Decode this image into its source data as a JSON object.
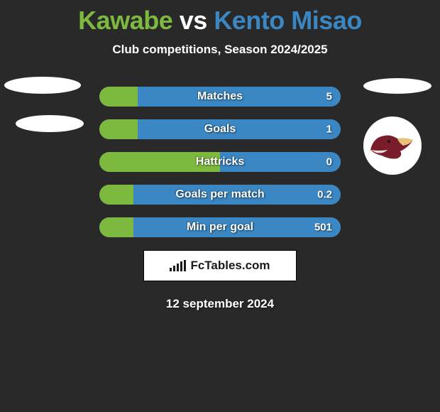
{
  "title": {
    "player_left": "Kawabe",
    "vs": "vs",
    "player_right": "Kento Misao",
    "color_left": "#7db93f",
    "color_right": "#3a87c3"
  },
  "subtitle": "Club competitions, Season 2024/2025",
  "colors": {
    "bg": "#292929",
    "bar_left": "#7db93f",
    "bar_right": "#3a87c3",
    "text": "#ffffff"
  },
  "stats": [
    {
      "label": "Matches",
      "left_val": "",
      "right_val": "5",
      "left_pct": 16,
      "right_pct": 84
    },
    {
      "label": "Goals",
      "left_val": "",
      "right_val": "1",
      "left_pct": 16,
      "right_pct": 84
    },
    {
      "label": "Hattricks",
      "left_val": "",
      "right_val": "0",
      "left_pct": 50,
      "right_pct": 50
    },
    {
      "label": "Goals per match",
      "left_val": "",
      "right_val": "0.2",
      "left_pct": 14,
      "right_pct": 86
    },
    {
      "label": "Min per goal",
      "left_val": "",
      "right_val": "501",
      "left_pct": 14,
      "right_pct": 86
    }
  ],
  "footer": {
    "brand": "FcTables.com",
    "date": "12 september 2024"
  },
  "right_badge": {
    "body_color": "#7a1d2a",
    "snout_color": "#e6c27a"
  }
}
